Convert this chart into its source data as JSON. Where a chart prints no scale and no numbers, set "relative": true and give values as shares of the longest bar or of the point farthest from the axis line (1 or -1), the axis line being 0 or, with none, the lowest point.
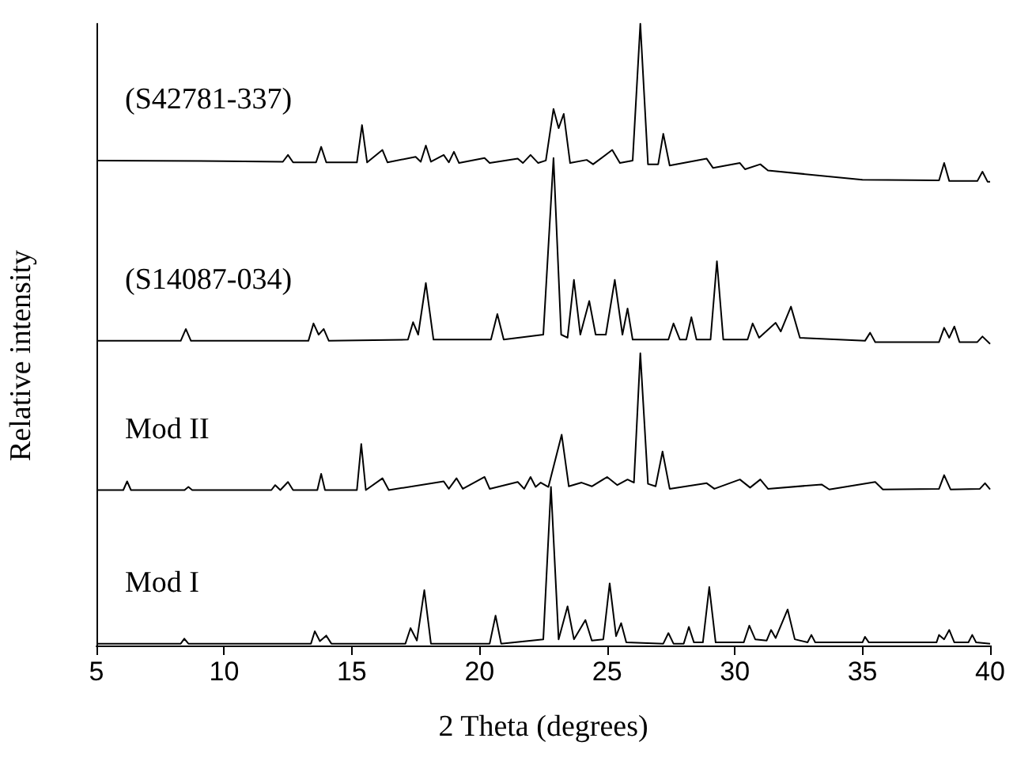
{
  "chart_data": {
    "type": "line",
    "xlabel": "2 Theta (degrees)",
    "ylabel": "Relative intensity",
    "relative": true,
    "xlim": [
      5,
      40
    ],
    "xticks": [
      5,
      10,
      15,
      20,
      25,
      30,
      35,
      40
    ],
    "grid": false,
    "legend": false,
    "marker": "none",
    "line_style": "solid",
    "series": [
      {
        "name": "Mod I",
        "color": "#000000",
        "x": [
          5,
          8.3,
          8.44,
          8.6,
          13.4,
          13.55,
          13.75,
          14.0,
          14.2,
          17.1,
          17.3,
          17.55,
          17.84,
          18.1,
          20.4,
          20.63,
          20.85,
          22.5,
          22.8,
          23.1,
          23.45,
          23.7,
          24.15,
          24.4,
          24.85,
          25.1,
          25.35,
          25.55,
          25.75,
          27.2,
          27.4,
          27.6,
          28.0,
          28.2,
          28.4,
          28.75,
          29.0,
          29.25,
          30.35,
          30.57,
          30.8,
          31.25,
          31.42,
          31.6,
          32.07,
          32.35,
          32.85,
          33.0,
          33.15,
          35.0,
          35.1,
          35.25,
          37.9,
          38.0,
          38.2,
          38.4,
          38.6,
          39.15,
          39.3,
          39.45,
          40
        ],
        "values": [
          0.003,
          0.003,
          0.011,
          0.003,
          0.003,
          0.023,
          0.007,
          0.016,
          0.003,
          0.003,
          0.028,
          0.008,
          0.089,
          0.003,
          0.003,
          0.048,
          0.003,
          0.01,
          0.255,
          0.01,
          0.063,
          0.01,
          0.041,
          0.008,
          0.01,
          0.1,
          0.015,
          0.036,
          0.005,
          0.003,
          0.02,
          0.003,
          0.003,
          0.03,
          0.005,
          0.005,
          0.094,
          0.005,
          0.005,
          0.032,
          0.01,
          0.008,
          0.025,
          0.012,
          0.058,
          0.01,
          0.005,
          0.017,
          0.005,
          0.005,
          0.014,
          0.005,
          0.005,
          0.017,
          0.01,
          0.025,
          0.005,
          0.005,
          0.017,
          0.005,
          0.003
        ]
      },
      {
        "name": "Mod II",
        "color": "#000000",
        "x": [
          5,
          6.05,
          6.2,
          6.35,
          8.45,
          8.6,
          8.75,
          11.85,
          12.0,
          12.2,
          12.5,
          12.7,
          13.65,
          13.8,
          13.95,
          15.2,
          15.37,
          15.55,
          16.2,
          16.45,
          18.6,
          18.8,
          19.1,
          19.35,
          20.2,
          20.4,
          21.5,
          21.75,
          22.0,
          22.2,
          22.4,
          22.7,
          23.22,
          23.5,
          24.0,
          24.4,
          25.0,
          25.4,
          25.8,
          26.05,
          26.3,
          26.6,
          26.9,
          27.17,
          27.45,
          28.9,
          29.2,
          30.2,
          30.6,
          31.0,
          31.3,
          33.4,
          33.7,
          35.5,
          35.8,
          38.0,
          38.2,
          38.45,
          39.6,
          39.8,
          40
        ],
        "values": [
          0.25,
          0.25,
          0.264,
          0.25,
          0.25,
          0.255,
          0.25,
          0.25,
          0.258,
          0.25,
          0.263,
          0.25,
          0.25,
          0.276,
          0.25,
          0.25,
          0.324,
          0.25,
          0.269,
          0.25,
          0.264,
          0.252,
          0.269,
          0.252,
          0.271,
          0.252,
          0.263,
          0.252,
          0.271,
          0.255,
          0.262,
          0.255,
          0.339,
          0.256,
          0.262,
          0.256,
          0.271,
          0.258,
          0.267,
          0.262,
          0.47,
          0.26,
          0.256,
          0.312,
          0.252,
          0.261,
          0.252,
          0.267,
          0.254,
          0.267,
          0.252,
          0.259,
          0.251,
          0.263,
          0.251,
          0.252,
          0.274,
          0.251,
          0.252,
          0.261,
          0.251
        ]
      },
      {
        "name": "(S14087-034)",
        "color": "#000000",
        "x": [
          5,
          8.3,
          8.5,
          8.7,
          13.3,
          13.5,
          13.7,
          13.9,
          14.1,
          17.2,
          17.4,
          17.6,
          17.9,
          18.2,
          20.45,
          20.7,
          20.95,
          22.5,
          22.9,
          23.2,
          23.45,
          23.7,
          23.95,
          24.3,
          24.55,
          24.95,
          25.3,
          25.6,
          25.8,
          26.0,
          27.4,
          27.6,
          27.85,
          28.1,
          28.3,
          28.5,
          29.05,
          29.3,
          29.55,
          30.5,
          30.7,
          30.95,
          31.6,
          31.8,
          32.2,
          32.55,
          35.1,
          35.3,
          35.5,
          38.0,
          38.2,
          38.4,
          38.6,
          38.8,
          39.5,
          39.7,
          40
        ],
        "values": [
          0.49,
          0.49,
          0.509,
          0.49,
          0.49,
          0.518,
          0.5,
          0.509,
          0.49,
          0.492,
          0.52,
          0.5,
          0.583,
          0.492,
          0.492,
          0.533,
          0.492,
          0.5,
          0.784,
          0.5,
          0.495,
          0.588,
          0.5,
          0.554,
          0.5,
          0.5,
          0.588,
          0.5,
          0.542,
          0.492,
          0.492,
          0.518,
          0.492,
          0.492,
          0.528,
          0.492,
          0.492,
          0.618,
          0.492,
          0.492,
          0.518,
          0.495,
          0.519,
          0.505,
          0.545,
          0.495,
          0.49,
          0.503,
          0.488,
          0.488,
          0.511,
          0.495,
          0.513,
          0.488,
          0.488,
          0.497,
          0.485
        ]
      },
      {
        "name": "(S42781-337)",
        "color": "#000000",
        "x": [
          5,
          10,
          12.3,
          12.5,
          12.7,
          13.6,
          13.8,
          14.0,
          15.2,
          15.4,
          15.6,
          16.2,
          16.4,
          17.5,
          17.7,
          17.9,
          18.1,
          18.6,
          18.8,
          19.0,
          19.2,
          20.2,
          20.4,
          21.5,
          21.7,
          22.0,
          22.3,
          22.6,
          22.9,
          23.1,
          23.3,
          23.55,
          24.2,
          24.45,
          25.2,
          25.5,
          26.0,
          26.3,
          26.6,
          27.0,
          27.2,
          27.45,
          28.9,
          29.15,
          30.2,
          30.4,
          31.0,
          31.3,
          35,
          38.0,
          38.2,
          38.4,
          39.5,
          39.7,
          39.9,
          40
        ],
        "values": [
          0.78,
          0.779,
          0.778,
          0.789,
          0.777,
          0.777,
          0.802,
          0.777,
          0.777,
          0.837,
          0.777,
          0.797,
          0.777,
          0.786,
          0.778,
          0.804,
          0.778,
          0.789,
          0.777,
          0.794,
          0.776,
          0.784,
          0.776,
          0.783,
          0.776,
          0.789,
          0.776,
          0.78,
          0.863,
          0.832,
          0.855,
          0.776,
          0.781,
          0.774,
          0.797,
          0.776,
          0.78,
          1.0,
          0.774,
          0.774,
          0.823,
          0.772,
          0.783,
          0.768,
          0.776,
          0.766,
          0.774,
          0.764,
          0.749,
          0.748,
          0.776,
          0.747,
          0.747,
          0.762,
          0.746,
          0.746
        ]
      }
    ]
  }
}
